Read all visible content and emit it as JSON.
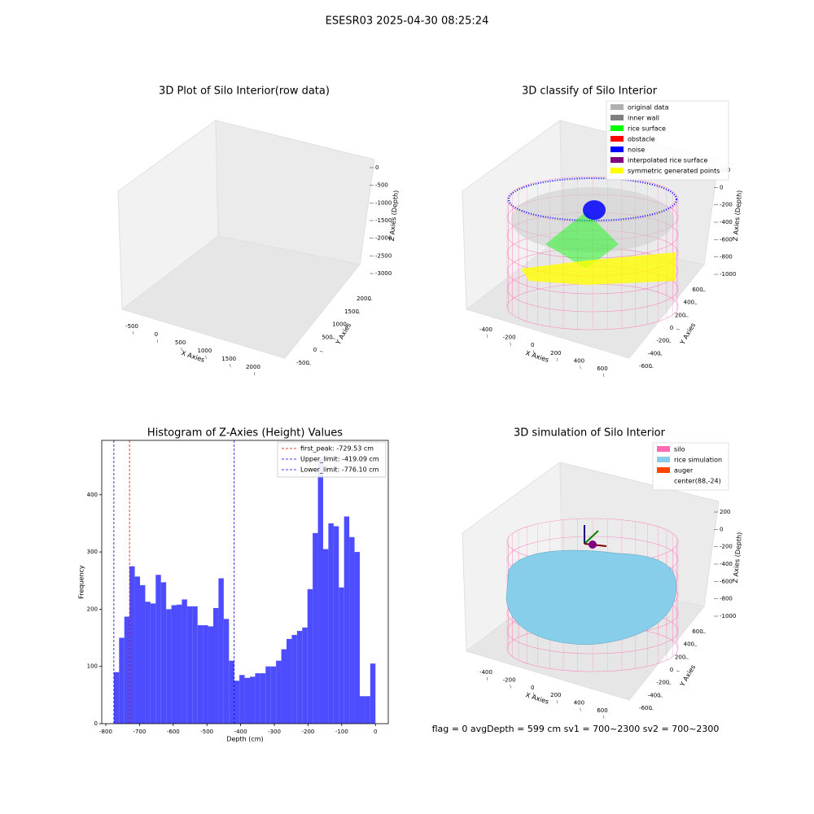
{
  "suptitle": "ESESR03 2025-04-30 08:25:24",
  "footer": "flag = 0     avgDepth = 599 cm  sv1 = 700~2300  sv2 = 700~2300",
  "chart_data": [
    {
      "type": "scatter3d",
      "title": "3D Plot of Silo Interior(row data)",
      "xlabel": "X Axies",
      "ylabel": "Y Axies",
      "zlabel": "Z Axies (Depth)",
      "xticks": [
        -500,
        0,
        500,
        1000,
        1500,
        2000
      ],
      "yticks": [
        -500,
        0,
        500,
        1000,
        1500,
        2000
      ],
      "zticks": [
        0,
        -500,
        -1000,
        -1500,
        -2000,
        -2500,
        -3000
      ]
    },
    {
      "type": "scatter3d",
      "title": "3D classify of Silo Interior",
      "xlabel": "X Axies",
      "ylabel": "Y Axies",
      "zlabel": "Z Axies (Depth)",
      "xticks": [
        -400,
        -200,
        0,
        200,
        400,
        600
      ],
      "yticks": [
        -600,
        -400,
        -200,
        0,
        200,
        400,
        600
      ],
      "zticks": [
        200,
        0,
        -200,
        -400,
        -600,
        -800,
        -1000
      ],
      "legend": [
        {
          "name": "original data",
          "color": "#b0b0b0"
        },
        {
          "name": "inner wall",
          "color": "#808080"
        },
        {
          "name": "rice surface",
          "color": "#00ff00"
        },
        {
          "name": "obstacle",
          "color": "#ff0000"
        },
        {
          "name": "noise",
          "color": "#0000ff"
        },
        {
          "name": "interpolated rice surface",
          "color": "#800080"
        },
        {
          "name": "symmetric generated points",
          "color": "#ffff00"
        }
      ]
    },
    {
      "type": "histogram",
      "title": "Histogram of Z-Axies (Height) Values",
      "xlabel": "Depth (cm)",
      "ylabel": "Frequency",
      "color": "#4d4dff",
      "bins": [
        -776.1,
        -760.58,
        -745.06,
        -729.53,
        -714.01,
        -698.49,
        -682.97,
        -667.45,
        -651.92,
        -636.4,
        -620.88,
        -605.36,
        -589.84,
        -574.31,
        -558.79,
        -543.27,
        -527.75,
        -512.23,
        -496.7,
        -481.18,
        -465.66,
        -450.14,
        -434.62,
        -419.09,
        -403.57,
        -388.05,
        -372.53,
        -357.01,
        -341.48,
        -325.96,
        -310.44,
        -294.92,
        -279.4,
        -263.87,
        -248.35,
        -232.83,
        -217.31,
        -201.79,
        -186.26,
        -170.74,
        -155.22,
        -139.7,
        -124.18,
        -108.65,
        -93.13,
        -77.61,
        -62.09,
        -46.57,
        -31.04,
        -15.52,
        0
      ],
      "values": [
        90,
        150,
        187,
        275,
        257,
        242,
        213,
        210,
        260,
        247,
        200,
        207,
        208,
        217,
        205,
        205,
        172,
        172,
        170,
        202,
        254,
        183,
        110,
        75,
        85,
        80,
        82,
        88,
        88,
        100,
        100,
        110,
        130,
        148,
        155,
        162,
        168,
        235,
        333,
        463,
        305,
        350,
        345,
        238,
        362,
        326,
        300,
        48,
        48,
        105
      ],
      "xlim": [
        -812,
        38
      ],
      "ylim": [
        0,
        495
      ],
      "xticks": [
        -800,
        -700,
        -600,
        -500,
        -400,
        -300,
        -200,
        -100,
        0
      ],
      "yticks": [
        0,
        100,
        200,
        300,
        400
      ],
      "lines": [
        {
          "label": "first_peak: -729.53 cm",
          "value": -729.53,
          "color": "#ff0000"
        },
        {
          "label": "Upper_limit: -419.09 cm",
          "value": -419.09,
          "color": "#0000ff"
        },
        {
          "label": "Lower_limit: -776.10 cm",
          "value": -776.1,
          "color": "#0000ff"
        }
      ]
    },
    {
      "type": "surface3d",
      "title": "3D simulation of Silo Interior",
      "xlabel": "X Axies",
      "ylabel": "Y Axies",
      "zlabel": "Z Axies (Depth)",
      "xticks": [
        -400,
        -200,
        0,
        200,
        400,
        600
      ],
      "yticks": [
        -600,
        -400,
        -200,
        0,
        200,
        400,
        600
      ],
      "zticks": [
        200,
        0,
        -200,
        -400,
        -600,
        -800,
        -1000
      ],
      "legend": [
        {
          "name": "silo",
          "color": "#ff69b4"
        },
        {
          "name": "rice simulation",
          "color": "#87ceeb"
        },
        {
          "name": "auger",
          "color": "#ff4500"
        },
        {
          "name": "center(88,-24)",
          "color": "#ffffff"
        }
      ]
    }
  ]
}
